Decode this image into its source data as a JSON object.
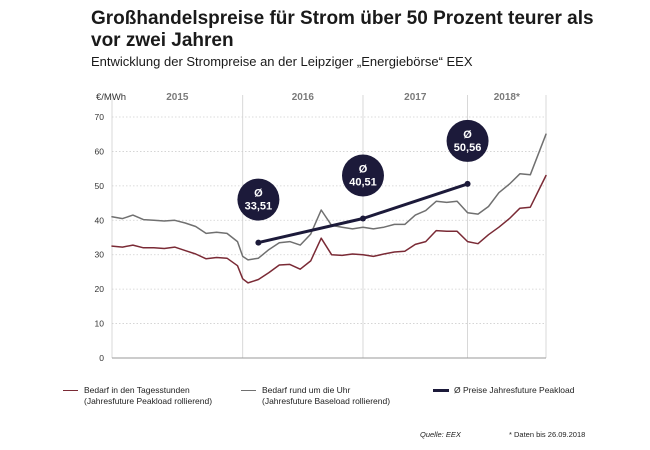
{
  "header": {
    "title": "Großhandelspreise für Strom über 50 Prozent teurer als vor zwei Jahren",
    "subtitle": "Entwicklung der Strompreise an der Leipziger „Energiebörse“ EEX"
  },
  "chart_data": {
    "type": "line",
    "ylabel": "€/MWh",
    "ylim": [
      0,
      70
    ],
    "yticks": [
      0,
      10,
      20,
      30,
      40,
      50,
      60,
      70
    ],
    "year_labels": [
      "2015",
      "2016",
      "2017",
      "2018*"
    ],
    "xlim": [
      2014.6,
      2018.75
    ],
    "year_boundaries": [
      2015.85,
      2017.0,
      2018.0
    ],
    "series": [
      {
        "name": "Bedarf in den Tagesstunden (Jahresfuture Peakload rollierend)",
        "color": "#7a2a35",
        "x": [
          2014.6,
          2014.7,
          2014.8,
          2014.9,
          2015.0,
          2015.1,
          2015.2,
          2015.3,
          2015.4,
          2015.5,
          2015.6,
          2015.7,
          2015.8,
          2015.85,
          2015.9,
          2016.0,
          2016.1,
          2016.2,
          2016.3,
          2016.4,
          2016.5,
          2016.6,
          2016.7,
          2016.8,
          2016.9,
          2017.0,
          2017.1,
          2017.2,
          2017.3,
          2017.4,
          2017.5,
          2017.6,
          2017.7,
          2017.8,
          2017.9,
          2018.0,
          2018.1,
          2018.2,
          2018.3,
          2018.4,
          2018.5,
          2018.6,
          2018.75
        ],
        "values": [
          32.5,
          32.2,
          32.8,
          32.0,
          32.0,
          31.8,
          32.2,
          31.2,
          30.2,
          28.8,
          29.2,
          29.0,
          26.8,
          23.0,
          21.8,
          22.8,
          24.8,
          27.0,
          27.2,
          25.8,
          28.2,
          34.8,
          30.0,
          29.8,
          30.2,
          30.0,
          29.5,
          30.2,
          30.8,
          31.0,
          33.0,
          33.8,
          37.0,
          36.8,
          36.8,
          33.8,
          33.2,
          35.8,
          38.0,
          40.5,
          43.5,
          43.8,
          53.0
        ]
      },
      {
        "name": "Bedarf rund um die Uhr (Jahresfuture Baseload rollierend)",
        "color": "#707070",
        "x": [
          2014.6,
          2014.7,
          2014.8,
          2014.9,
          2015.0,
          2015.1,
          2015.2,
          2015.3,
          2015.4,
          2015.5,
          2015.6,
          2015.7,
          2015.8,
          2015.85,
          2015.9,
          2016.0,
          2016.1,
          2016.2,
          2016.3,
          2016.4,
          2016.5,
          2016.6,
          2016.7,
          2016.8,
          2016.9,
          2017.0,
          2017.1,
          2017.2,
          2017.3,
          2017.4,
          2017.5,
          2017.6,
          2017.7,
          2017.8,
          2017.9,
          2018.0,
          2018.1,
          2018.2,
          2018.3,
          2018.4,
          2018.5,
          2018.6,
          2018.75
        ],
        "values": [
          41.0,
          40.5,
          41.5,
          40.2,
          40.0,
          39.8,
          40.0,
          39.2,
          38.2,
          36.2,
          36.5,
          36.2,
          33.8,
          29.5,
          28.5,
          29.0,
          31.5,
          33.5,
          33.8,
          32.8,
          36.0,
          43.0,
          38.5,
          38.0,
          37.5,
          38.0,
          37.5,
          38.0,
          38.8,
          38.8,
          41.5,
          42.8,
          45.5,
          45.2,
          45.5,
          42.2,
          41.8,
          44.0,
          48.0,
          50.5,
          53.5,
          53.2,
          65.0
        ]
      },
      {
        "name": "Ø Preise Jahresfuture Peakload",
        "color": "#1c1a3a",
        "x": [
          2016.0,
          2017.0,
          2018.0
        ],
        "values": [
          33.51,
          40.51,
          50.56
        ]
      }
    ],
    "annotations": [
      {
        "symbol": "Ø",
        "label": "33,51",
        "x": 2016.0,
        "y": 33.51
      },
      {
        "symbol": "Ø",
        "label": "40,51",
        "x": 2017.0,
        "y": 40.51
      },
      {
        "symbol": "Ø",
        "label": "50,56",
        "x": 2018.0,
        "y": 50.56
      }
    ]
  },
  "legend": [
    {
      "line1": "Bedarf in den Tagesstunden",
      "line2": "(Jahresfuture Peakload rollierend)",
      "color": "#7a2a35"
    },
    {
      "line1": "Bedarf rund um die Uhr",
      "line2": "(Jahresfuture Baseload rollierend)",
      "color": "#707070"
    },
    {
      "line1": "Ø Preise Jahresfuture Peakload",
      "line2": "",
      "color": "#1c1a3a"
    }
  ],
  "footer": {
    "source": "Quelle: EEX",
    "note": "* Daten bis 26.09.2018"
  }
}
